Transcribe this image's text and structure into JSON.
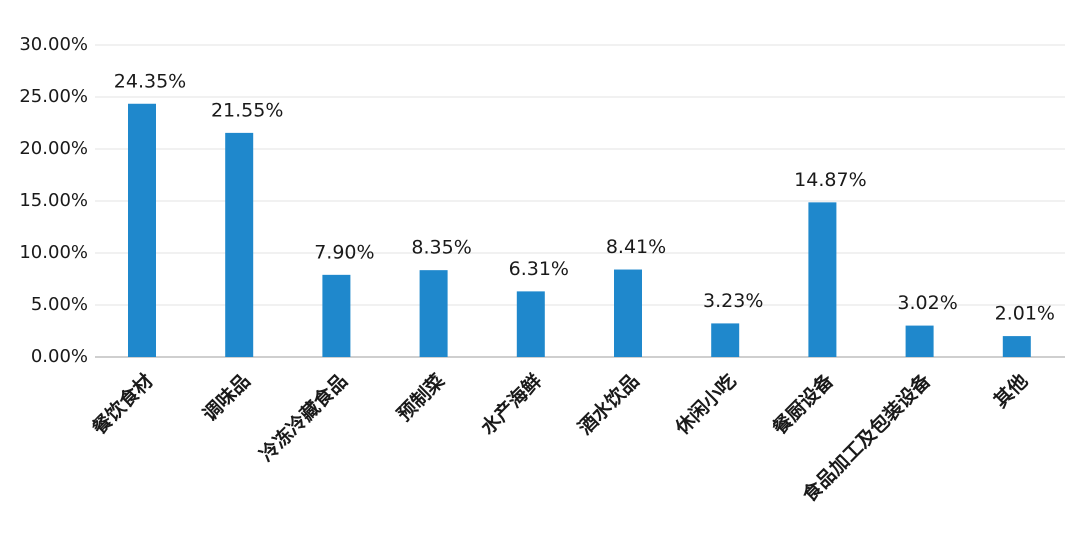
{
  "chart_data": {
    "type": "bar",
    "categories": [
      "餐饮食材",
      "调味品",
      "冷冻冷藏食品",
      "预制菜",
      "水产海鲜",
      "酒水饮品",
      "休闲小吃",
      "餐厨设备",
      "食品加工及包装设备",
      "其他"
    ],
    "values": [
      24.35,
      21.55,
      7.9,
      8.35,
      6.31,
      8.41,
      3.23,
      14.87,
      3.02,
      2.01
    ],
    "value_labels": [
      "24.35%",
      "21.55%",
      "7.90%",
      "8.35%",
      "6.31%",
      "8.41%",
      "3.23%",
      "14.87%",
      "3.02%",
      "2.01%"
    ],
    "color": "#1f88cc",
    "ylim": [
      0,
      30
    ],
    "yticks": [
      {
        "value": 0,
        "label": "0.00%"
      },
      {
        "value": 5,
        "label": "5.00%"
      },
      {
        "value": 10,
        "label": "10.00%"
      },
      {
        "value": 15,
        "label": "15.00%"
      },
      {
        "value": 20,
        "label": "20.00%"
      },
      {
        "value": 25,
        "label": "25.00%"
      },
      {
        "value": 30,
        "label": "30.00%"
      }
    ],
    "grid": true
  }
}
